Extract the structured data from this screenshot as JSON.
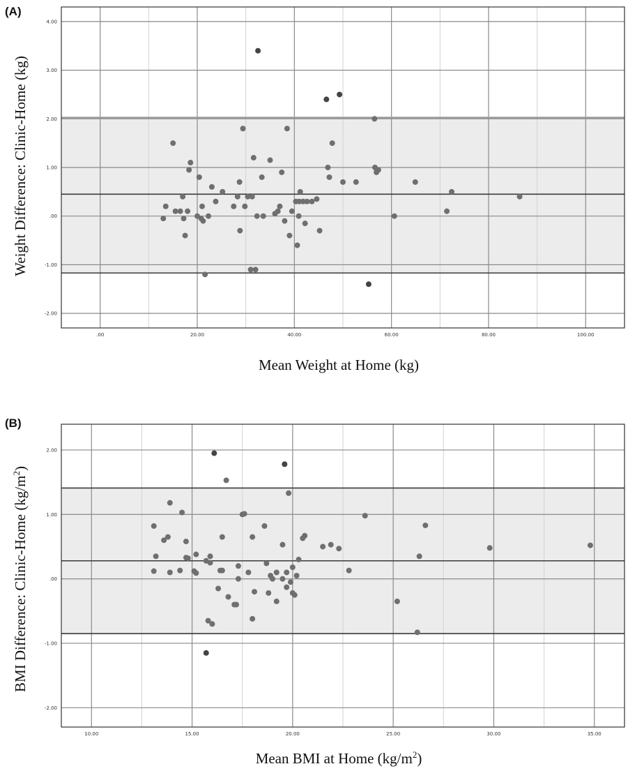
{
  "chart_data": [
    {
      "type": "scatter",
      "panel_label": "(A)",
      "title": "",
      "xlabel": "Mean Weight at Home (kg)",
      "ylabel": "Weight Difference: Clinic-Home (kg)",
      "xlim": [
        -8,
        108
      ],
      "ylim": [
        -2.3,
        4.3
      ],
      "x_ticks": [
        0,
        20,
        40,
        60,
        80,
        100
      ],
      "x_tick_labels": [
        ".00",
        "20.00",
        "40.00",
        "60.00",
        "80.00",
        "100.00"
      ],
      "y_ticks": [
        -2,
        -1,
        0,
        1,
        2,
        3,
        4
      ],
      "y_tick_labels": [
        "-2.00",
        "-1.00",
        ".00",
        "1.00",
        "2.00",
        "3.00",
        "4.00"
      ],
      "mean_difference": 0.45,
      "upper_limit": 2.02,
      "lower_limit": -1.17,
      "grid": true,
      "points": [
        [
          13,
          -0.05
        ],
        [
          13.5,
          0.2
        ],
        [
          15,
          1.5
        ],
        [
          15.5,
          0.1
        ],
        [
          16.5,
          0.1
        ],
        [
          17,
          0.4
        ],
        [
          17.2,
          -0.05
        ],
        [
          17.5,
          -0.4
        ],
        [
          18,
          0.1
        ],
        [
          18.3,
          0.95
        ],
        [
          18.6,
          1.1
        ],
        [
          20,
          0.0
        ],
        [
          20.4,
          0.8
        ],
        [
          20.8,
          -0.05
        ],
        [
          21,
          0.2
        ],
        [
          21.2,
          -0.1
        ],
        [
          21.6,
          -1.2
        ],
        [
          22.3,
          0.0
        ],
        [
          23,
          0.6
        ],
        [
          23.8,
          0.3
        ],
        [
          25.2,
          0.5
        ],
        [
          27.5,
          0.2
        ],
        [
          28.3,
          0.4
        ],
        [
          28.7,
          0.7
        ],
        [
          28.8,
          -0.3
        ],
        [
          29.4,
          1.8
        ],
        [
          29.8,
          0.2
        ],
        [
          30.4,
          0.4
        ],
        [
          31,
          -1.1
        ],
        [
          31.3,
          0.4
        ],
        [
          31.6,
          1.2
        ],
        [
          32,
          -1.1
        ],
        [
          32.3,
          0.0
        ],
        [
          32.5,
          3.4
        ],
        [
          33.3,
          0.8
        ],
        [
          33.6,
          0.0
        ],
        [
          35,
          1.15
        ],
        [
          36,
          0.05
        ],
        [
          36.6,
          0.1
        ],
        [
          37,
          0.2
        ],
        [
          37.4,
          0.9
        ],
        [
          38,
          -0.1
        ],
        [
          38.5,
          1.8
        ],
        [
          39,
          -0.4
        ],
        [
          39.5,
          0.1
        ],
        [
          40.3,
          0.3
        ],
        [
          40.6,
          -0.6
        ],
        [
          40.9,
          0.0
        ],
        [
          41,
          0.3
        ],
        [
          41.2,
          0.5
        ],
        [
          41.8,
          0.3
        ],
        [
          42.2,
          -0.15
        ],
        [
          42.6,
          0.3
        ],
        [
          43.6,
          0.3
        ],
        [
          44.6,
          0.35
        ],
        [
          45.2,
          -0.3
        ],
        [
          46.6,
          2.4
        ],
        [
          46.9,
          1.0
        ],
        [
          47.2,
          0.8
        ],
        [
          47.8,
          1.5
        ],
        [
          49.3,
          2.5
        ],
        [
          50,
          0.7
        ],
        [
          52.7,
          0.7
        ],
        [
          55.3,
          -1.4
        ],
        [
          56.5,
          2.0
        ],
        [
          56.6,
          1.0
        ],
        [
          56.9,
          0.9
        ],
        [
          57.3,
          0.95
        ],
        [
          60.6,
          0.0
        ],
        [
          64.9,
          0.7
        ],
        [
          71.4,
          0.1
        ],
        [
          72.4,
          0.5
        ],
        [
          86.4,
          0.4
        ]
      ]
    },
    {
      "type": "scatter",
      "panel_label": "(B)",
      "title": "",
      "xlabel": "Mean BMI at Home (kg/m2)",
      "xlabel_parts": [
        "Mean BMI at Home (kg/m",
        "2",
        ")"
      ],
      "ylabel": "BMI Difference: Clinic-Home (kg/m2)",
      "ylabel_parts": [
        "BMI Difference: Clinic-Home (kg/m",
        "2",
        ")"
      ],
      "xlim": [
        8.5,
        36.5
      ],
      "ylim": [
        -2.3,
        2.4
      ],
      "x_ticks": [
        10,
        15,
        20,
        25,
        30,
        35
      ],
      "x_tick_labels": [
        "10.00",
        "15.00",
        "20.00",
        "25.00",
        "30.00",
        "35.00"
      ],
      "y_ticks": [
        -2,
        -1,
        0,
        1,
        2
      ],
      "y_tick_labels": [
        "-2.00",
        "-1.00",
        ".00",
        "1.00",
        "2.00"
      ],
      "mean_difference": 0.28,
      "upper_limit": 1.41,
      "lower_limit": -0.85,
      "grid": true,
      "points": [
        [
          13.1,
          0.82
        ],
        [
          13.1,
          0.12
        ],
        [
          13.2,
          0.35
        ],
        [
          13.6,
          0.6
        ],
        [
          13.8,
          0.65
        ],
        [
          13.9,
          1.18
        ],
        [
          13.9,
          0.1
        ],
        [
          14.4,
          0.13
        ],
        [
          14.5,
          1.03
        ],
        [
          14.7,
          0.58
        ],
        [
          14.7,
          0.33
        ],
        [
          14.8,
          0.32
        ],
        [
          15.1,
          0.12
        ],
        [
          15.2,
          0.09
        ],
        [
          15.2,
          0.38
        ],
        [
          15.7,
          0.28
        ],
        [
          15.7,
          -1.15
        ],
        [
          15.8,
          -0.65
        ],
        [
          15.9,
          0.25
        ],
        [
          15.9,
          0.35
        ],
        [
          16.0,
          -0.7
        ],
        [
          16.1,
          1.95
        ],
        [
          16.3,
          -0.15
        ],
        [
          16.4,
          0.13
        ],
        [
          16.5,
          0.65
        ],
        [
          16.5,
          0.13
        ],
        [
          16.7,
          1.53
        ],
        [
          16.8,
          -0.28
        ],
        [
          17.1,
          -0.4
        ],
        [
          17.2,
          -0.4
        ],
        [
          17.3,
          0.2
        ],
        [
          17.3,
          0.0
        ],
        [
          17.5,
          1.0
        ],
        [
          17.6,
          1.01
        ],
        [
          17.8,
          0.1
        ],
        [
          18.0,
          -0.62
        ],
        [
          18.0,
          0.65
        ],
        [
          18.1,
          -0.2
        ],
        [
          18.6,
          0.82
        ],
        [
          18.7,
          0.24
        ],
        [
          18.8,
          -0.22
        ],
        [
          18.9,
          0.05
        ],
        [
          19.0,
          0.0
        ],
        [
          19.2,
          -0.35
        ],
        [
          19.2,
          0.1
        ],
        [
          19.5,
          0.53
        ],
        [
          19.5,
          0.0
        ],
        [
          19.6,
          1.78
        ],
        [
          19.7,
          0.1
        ],
        [
          19.7,
          -0.13
        ],
        [
          19.8,
          1.33
        ],
        [
          19.9,
          -0.05
        ],
        [
          20.0,
          -0.22
        ],
        [
          20.0,
          0.18
        ],
        [
          20.1,
          -0.25
        ],
        [
          20.2,
          0.05
        ],
        [
          20.3,
          0.3
        ],
        [
          20.5,
          0.63
        ],
        [
          20.6,
          0.67
        ],
        [
          21.5,
          0.5
        ],
        [
          21.9,
          0.53
        ],
        [
          22.3,
          0.47
        ],
        [
          22.8,
          0.13
        ],
        [
          23.6,
          0.98
        ],
        [
          25.2,
          -0.35
        ],
        [
          26.2,
          -0.83
        ],
        [
          26.3,
          0.35
        ],
        [
          26.6,
          0.83
        ],
        [
          29.8,
          0.48
        ],
        [
          34.8,
          0.52
        ]
      ]
    }
  ]
}
